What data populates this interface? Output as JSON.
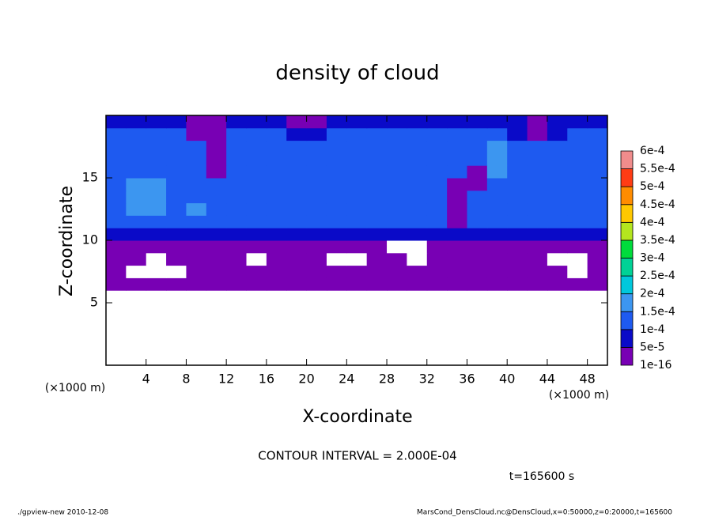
{
  "chart_data": {
    "type": "contour",
    "title": "density of cloud",
    "xlabel": "X-coordinate",
    "ylabel": "Z-coordinate",
    "xlim": [
      0,
      50
    ],
    "ylim": [
      0,
      20
    ],
    "xticks": [
      4,
      8,
      12,
      16,
      20,
      24,
      28,
      32,
      36,
      40,
      44,
      48
    ],
    "yticks": [
      5,
      10,
      15
    ],
    "annotations": [
      "(×1000 m)",
      "(×1000 m)",
      "CONTOUR INTERVAL = 2.000E-04",
      "t=165600 s",
      "./gpview-new  2010-12-08",
      "MarsCond_DensCloud.nc@DensCloud,x=0:50000,z=0:20000,t=165600"
    ],
    "levels": [
      {
        "value": 1e-16,
        "label": "1e-16"
      },
      {
        "value": 5e-05,
        "label": "5e-5"
      },
      {
        "value": 0.0001,
        "label": "1e-4"
      },
      {
        "value": 0.00015,
        "label": "1.5e-4"
      },
      {
        "value": 0.0002,
        "label": "2e-4"
      },
      {
        "value": 0.00025,
        "label": "2.5e-4"
      },
      {
        "value": 0.0003,
        "label": "3e-4"
      },
      {
        "value": 0.00035,
        "label": "3.5e-4"
      },
      {
        "value": 0.0004,
        "label": "4e-4"
      },
      {
        "value": 0.00045,
        "label": "4.5e-4"
      },
      {
        "value": 0.0005,
        "label": "5e-4"
      },
      {
        "value": 0.00055,
        "label": "5.5e-4"
      },
      {
        "value": 0.0006,
        "label": "6e-4"
      }
    ],
    "level_colors": [
      "#7800b4",
      "#0a0ac8",
      "#1e5af0",
      "#3c96f0",
      "#00c8dc",
      "#00d296",
      "#00dc3c",
      "#b4e61e",
      "#ffc800",
      "#ff8c00",
      "#ff3c14",
      "#f08c8c"
    ],
    "x": [
      1,
      3,
      5,
      7,
      9,
      11,
      13,
      15,
      17,
      19,
      21,
      23,
      25,
      27,
      29,
      31,
      33,
      35,
      37,
      39,
      41,
      43,
      45,
      47,
      49
    ],
    "y": [
      5.5,
      6.5,
      7.5,
      8.5,
      9.5,
      10.5,
      11.5,
      12.5,
      13.5,
      14.5,
      15.5,
      16.5,
      17.5,
      18.5,
      19.5
    ],
    "z": [
      [
        0,
        0,
        0,
        0,
        0,
        0,
        0,
        0,
        0,
        0,
        0,
        0,
        0,
        0,
        0,
        0,
        0,
        0,
        0,
        0,
        0,
        0,
        0,
        0,
        0
      ],
      [
        1e-05,
        1e-05,
        1e-05,
        1e-05,
        1e-05,
        1e-05,
        1e-05,
        1e-05,
        1e-05,
        1e-05,
        1e-05,
        1e-05,
        1e-05,
        1e-05,
        1e-05,
        1e-05,
        1e-05,
        1e-05,
        1e-05,
        1e-05,
        1e-05,
        1e-05,
        1e-05,
        1e-05,
        1e-05
      ],
      [
        1e-05,
        0,
        0,
        0,
        1e-05,
        1e-05,
        1e-05,
        1e-05,
        1e-05,
        1e-05,
        1e-05,
        1e-05,
        1e-05,
        1e-05,
        1e-05,
        1e-05,
        1e-05,
        1e-05,
        1e-05,
        1e-05,
        1e-05,
        1e-05,
        1e-05,
        0,
        1e-05
      ],
      [
        1e-05,
        1e-05,
        0,
        1e-05,
        1e-05,
        1e-05,
        1e-05,
        0,
        1e-05,
        1e-05,
        1e-05,
        0,
        0,
        1e-05,
        1e-05,
        0,
        1e-05,
        1e-05,
        1e-05,
        1e-05,
        1e-05,
        1e-05,
        0,
        0,
        1e-05
      ],
      [
        1e-05,
        1e-05,
        1e-05,
        1e-05,
        1e-05,
        1e-05,
        1e-05,
        1e-05,
        1e-05,
        1e-05,
        1e-05,
        1e-05,
        1e-05,
        1e-05,
        0,
        0,
        1e-05,
        1e-05,
        1e-05,
        1e-05,
        1e-05,
        1e-05,
        1e-05,
        1e-05,
        1e-05
      ],
      [
        7e-05,
        7e-05,
        7e-05,
        7e-05,
        7e-05,
        7e-05,
        7e-05,
        7e-05,
        7e-05,
        7e-05,
        7e-05,
        7e-05,
        7e-05,
        7e-05,
        7e-05,
        7e-05,
        7e-05,
        7e-05,
        7e-05,
        7e-05,
        7e-05,
        7e-05,
        7e-05,
        7e-05,
        7e-05
      ],
      [
        0.00012,
        0.00012,
        0.00012,
        0.00012,
        0.00012,
        0.00012,
        0.00012,
        0.00012,
        0.00012,
        0.00012,
        0.00012,
        0.00012,
        0.00012,
        0.00012,
        0.00012,
        0.00012,
        0.00012,
        1e-05,
        0.00012,
        0.00012,
        0.00012,
        0.00012,
        0.00012,
        0.00012,
        0.00012
      ],
      [
        0.00012,
        0.00017,
        0.00017,
        0.00012,
        0.00017,
        0.00012,
        0.00012,
        0.00012,
        0.00012,
        0.00012,
        0.00012,
        0.00012,
        0.00012,
        0.00012,
        0.00012,
        0.00012,
        0.00012,
        1e-05,
        0.00012,
        0.00012,
        0.00012,
        0.00012,
        0.00012,
        0.00012,
        0.00012
      ],
      [
        0.00012,
        0.00017,
        0.00017,
        0.00012,
        0.00012,
        0.00012,
        0.00012,
        0.00012,
        0.00012,
        0.00012,
        0.00012,
        0.00012,
        0.00012,
        0.00012,
        0.00012,
        0.00012,
        0.00012,
        1e-05,
        0.00012,
        0.00012,
        0.00012,
        0.00012,
        0.00012,
        0.00012,
        0.00012
      ],
      [
        0.00012,
        0.00017,
        0.00017,
        0.00012,
        0.00012,
        0.00012,
        0.00012,
        0.00012,
        0.00012,
        0.00012,
        0.00012,
        0.00012,
        0.00012,
        0.00012,
        0.00012,
        0.00012,
        0.00012,
        1e-05,
        1e-05,
        0.00012,
        0.00012,
        0.00012,
        0.00012,
        0.00012,
        0.00012
      ],
      [
        0.00012,
        0.00012,
        0.00012,
        0.00012,
        0.00012,
        1e-05,
        0.00012,
        0.00012,
        0.00012,
        0.00012,
        0.00012,
        0.00012,
        0.00012,
        0.00012,
        0.00012,
        0.00012,
        0.00012,
        0.00012,
        1e-05,
        0.00017,
        0.00012,
        0.00012,
        0.00012,
        0.00012,
        0.00012
      ],
      [
        0.00012,
        0.00012,
        0.00012,
        0.00012,
        0.00012,
        1e-05,
        0.00012,
        0.00012,
        0.00012,
        0.00012,
        0.00012,
        0.00012,
        0.00012,
        0.00012,
        0.00012,
        0.00012,
        0.00012,
        0.00012,
        0.00012,
        0.00017,
        0.00012,
        0.00012,
        0.00012,
        0.00012,
        0.00012
      ],
      [
        0.00012,
        0.00012,
        0.00012,
        0.00012,
        0.00012,
        1e-05,
        0.00012,
        0.00012,
        0.00012,
        0.00012,
        0.00012,
        0.00012,
        0.00012,
        0.00012,
        0.00012,
        0.00012,
        0.00012,
        0.00012,
        0.00012,
        0.00017,
        0.00012,
        0.00012,
        0.00012,
        0.00012,
        0.00012
      ],
      [
        0.00012,
        0.00012,
        0.00012,
        0.00012,
        1e-05,
        1e-05,
        0.00012,
        0.00012,
        0.00012,
        7e-05,
        7e-05,
        0.00012,
        0.00012,
        0.00012,
        0.00012,
        0.00012,
        0.00012,
        0.00012,
        0.00012,
        0.00012,
        7e-05,
        1e-05,
        7e-05,
        0.00012,
        0.00012
      ],
      [
        7e-05,
        7e-05,
        7e-05,
        7e-05,
        1e-05,
        1e-05,
        7e-05,
        7e-05,
        7e-05,
        1e-05,
        1e-05,
        7e-05,
        7e-05,
        7e-05,
        7e-05,
        7e-05,
        7e-05,
        7e-05,
        7e-05,
        7e-05,
        7e-05,
        1e-05,
        7e-05,
        7e-05,
        7e-05
      ]
    ]
  }
}
